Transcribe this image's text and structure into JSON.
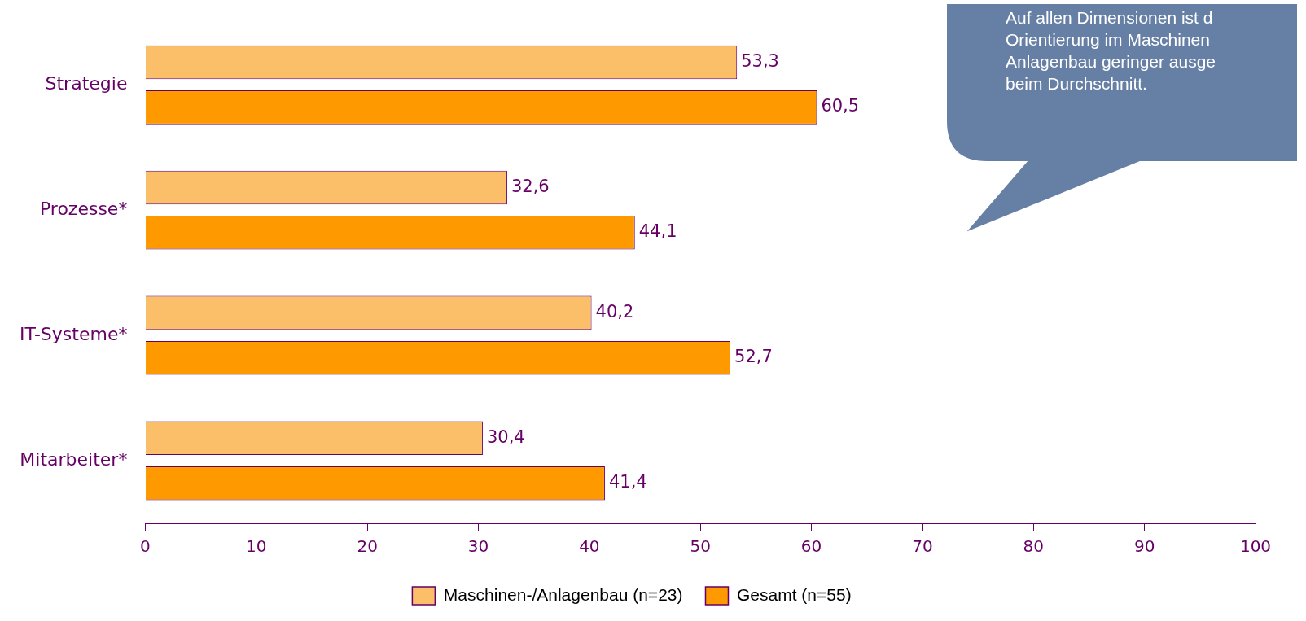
{
  "chart_data": {
    "type": "bar",
    "orientation": "horizontal",
    "categories": [
      "Strategie",
      "Prozesse*",
      "IT-Systeme*",
      "Mitarbeiter*"
    ],
    "series": [
      {
        "name": "Maschinen-/Anlagenbau (n=23)",
        "color": "#fbbf6a",
        "values": [
          53.3,
          32.6,
          40.2,
          30.4
        ],
        "value_labels": [
          "53,3",
          "32,6",
          "40,2",
          "30,4"
        ]
      },
      {
        "name": "Gesamt (n=55)",
        "color": "#ff9900",
        "values": [
          60.5,
          44.1,
          52.7,
          41.4
        ],
        "value_labels": [
          "60,5",
          "44,1",
          "52,7",
          "41,4"
        ]
      }
    ],
    "xlim": [
      0,
      100
    ],
    "xticks": [
      0,
      10,
      20,
      30,
      40,
      50,
      60,
      70,
      80,
      90,
      100
    ],
    "grid": false,
    "legend": "bottom",
    "annotations": [
      "Auf allen Dimensionen ist d\nOrientierung im Maschinen\nAnlagenbau geringer ausge\nbeim Durchschnitt."
    ]
  }
}
